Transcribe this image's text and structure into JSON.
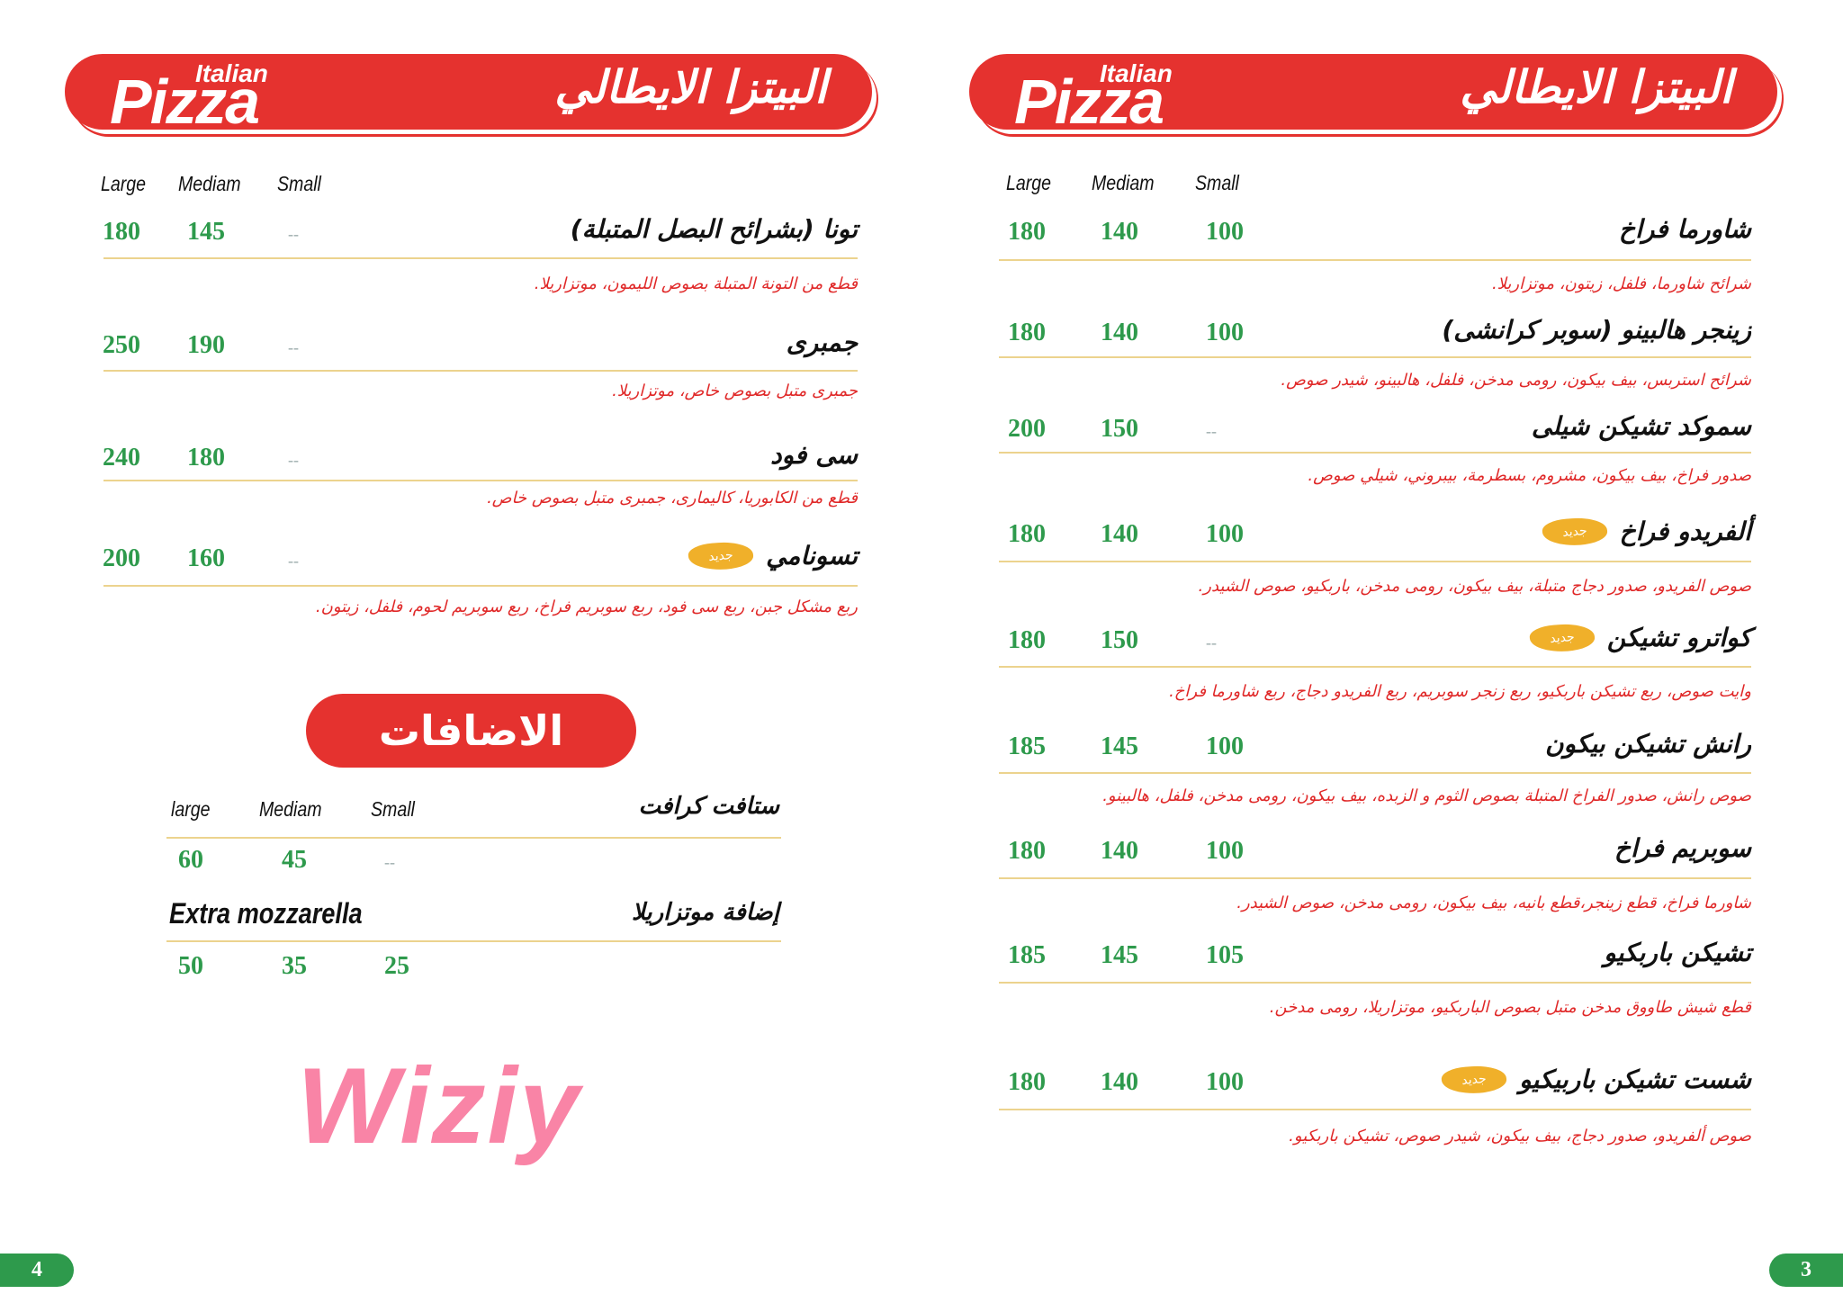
{
  "brand": {
    "italian": "Italian",
    "pizza": "Pizza",
    "title_ar": "البيتزا الايطالي"
  },
  "badge_new": "جديد",
  "watermark": "Wiziy",
  "colors": {
    "red": "#e5322f",
    "green": "#2e9a4c",
    "gold_line": "#ecd38e",
    "badge": "#f0b02a",
    "watermark": "#f86e96"
  },
  "left_page": {
    "page_number": "4",
    "columns": [
      "Large",
      "Mediam",
      "Small"
    ],
    "items": [
      {
        "name": "تونا (بشرائح البصل المتبلة)",
        "desc": "قطع من التونة المتبلة بصوص الليمون، موتزاريلا.",
        "large": "180",
        "medium": "145",
        "small": "--",
        "new": false
      },
      {
        "name": "جمبرى",
        "desc": "جمبرى متبل بصوص خاص، موتزاريلا.",
        "large": "250",
        "medium": "190",
        "small": "--",
        "new": false
      },
      {
        "name": "سى فود",
        "desc": "قطع من الكابوريا، كاليمارى، جمبرى متبل بصوص خاص.",
        "large": "240",
        "medium": "180",
        "small": "--",
        "new": false
      },
      {
        "name": "تسونامي",
        "desc": "ربع مشكل جبن، ربع سى فود، ربع سوبريم فراخ، ربع سوبريم لحوم، فلفل، زيتون.",
        "large": "200",
        "medium": "160",
        "small": "--",
        "new": true
      }
    ],
    "addons": {
      "title": "الاضافات",
      "columns": [
        "large",
        "Mediam",
        "Small"
      ],
      "items": [
        {
          "name": "ستافت كرافت",
          "name_en": "",
          "large": "60",
          "medium": "45",
          "small": "--"
        },
        {
          "name": "إضافة موتزاريلا",
          "name_en": "Extra mozzarella",
          "large": "50",
          "medium": "35",
          "small": "25"
        }
      ]
    }
  },
  "right_page": {
    "page_number": "3",
    "columns": [
      "Large",
      "Mediam",
      "Small"
    ],
    "items": [
      {
        "name": "شاورما فراخ",
        "desc": "شرائح شاورما، فلفل، زيتون، موتزاريلا.",
        "large": "180",
        "medium": "140",
        "small": "100",
        "new": false
      },
      {
        "name": "زينجر هالبينو (سوبر كرانشى)",
        "desc": "شرائح استربس، بيف بيكون، رومى مدخن، فلفل، هالبينو، شيدر صوص.",
        "large": "180",
        "medium": "140",
        "small": "100",
        "new": false
      },
      {
        "name": "سموكد تشيكن شيلى",
        "desc": "صدور فراخ، بيف بيكون، مشروم، بسطرمة، بيبروني، شيلي صوص.",
        "large": "200",
        "medium": "150",
        "small": "--",
        "new": false
      },
      {
        "name": "ألفريدو فراخ",
        "desc": "صوص الفريدو، صدور دجاج متبلة، بيف بيكون، رومى مدخن، باربكيو، صوص الشيدر.",
        "large": "180",
        "medium": "140",
        "small": "100",
        "new": true
      },
      {
        "name": "كواترو تشيكن",
        "desc": "وايت صوص، ربع تشيكن باربكيو، ربع زنجر سوبريم، ربع الفريدو دجاج، ربع شاورما فراخ.",
        "large": "180",
        "medium": "150",
        "small": "--",
        "new": true
      },
      {
        "name": "رانش تشيكن بيكون",
        "desc": "صوص رانش، صدور الفراخ المتبلة بصوص الثوم و الزبده، بيف بيكون، رومى مدخن، فلفل، هالبينو.",
        "large": "185",
        "medium": "145",
        "small": "100",
        "new": false
      },
      {
        "name": "سوبريم فراخ",
        "desc": "شاورما فراخ، قطع زينجر،قطع بانيه، بيف بيكون، رومى مدخن، صوص الشيدر.",
        "large": "180",
        "medium": "140",
        "small": "100",
        "new": false
      },
      {
        "name": "تشيكن باربكيو",
        "desc": "قطع شيش طاووق مدخن متبل بصوص الباربكيو، موتزاريلا، رومى مدخن.",
        "large": "185",
        "medium": "145",
        "small": "105",
        "new": false
      },
      {
        "name": "شست تشيكن باربيكيو",
        "desc": "صوص ألفريدو، صدور دجاج، بيف بيكون، شيدر صوص، تشيكن باربكيو.",
        "large": "180",
        "medium": "140",
        "small": "100",
        "new": true
      }
    ]
  }
}
